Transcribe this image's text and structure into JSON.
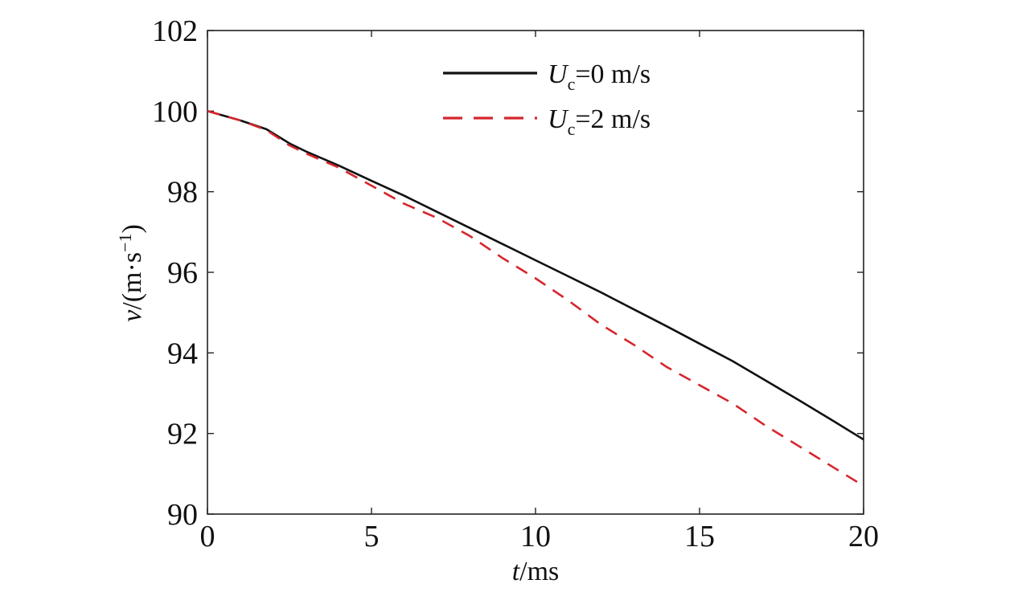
{
  "chart_data": {
    "type": "line",
    "xlabel": {
      "italic": "t",
      "rest": "/ms"
    },
    "ylabel": {
      "italic": "v",
      "rest": "/(m·s",
      "sup": "−1",
      "close": ")"
    },
    "xlim": [
      0,
      20
    ],
    "ylim": [
      90,
      102
    ],
    "xticks": [
      0,
      5,
      10,
      15,
      20
    ],
    "xtick_labels": [
      "0",
      "5",
      "10",
      "15",
      "20"
    ],
    "yticks": [
      90,
      92,
      94,
      96,
      98,
      100,
      102
    ],
    "ytick_labels": [
      "90",
      "92",
      "94",
      "96",
      "98",
      "100",
      "102"
    ],
    "grid": false,
    "legend_position": "top-center",
    "series": [
      {
        "name": "U_c=0 m/s",
        "legend": {
          "var": "U",
          "sub": "c",
          "rest": "=0 m/s"
        },
        "color": "#111111",
        "style": "solid",
        "x": [
          0,
          1,
          1.8,
          2.5,
          3,
          4,
          5,
          6,
          7,
          8,
          9,
          10,
          11,
          12,
          13,
          14,
          15,
          16,
          17,
          18,
          19,
          20
        ],
        "y": [
          100.0,
          99.77,
          99.55,
          99.2,
          99.0,
          98.65,
          98.27,
          97.9,
          97.5,
          97.1,
          96.7,
          96.3,
          95.9,
          95.5,
          95.08,
          94.66,
          94.23,
          93.8,
          93.32,
          92.84,
          92.35,
          91.85
        ]
      },
      {
        "name": "U_c=2 m/s",
        "legend": {
          "var": "U",
          "sub": "c",
          "rest": "=2 m/s"
        },
        "color": "#d6262d",
        "style": "dashed",
        "x": [
          0,
          1,
          1.8,
          2.5,
          3,
          4,
          5,
          6,
          7,
          8,
          9,
          10,
          11,
          12,
          13,
          14,
          15,
          16,
          17,
          18,
          19,
          20
        ],
        "y": [
          100.0,
          99.77,
          99.53,
          99.15,
          98.95,
          98.6,
          98.15,
          97.7,
          97.35,
          96.9,
          96.35,
          95.85,
          95.3,
          94.7,
          94.2,
          93.65,
          93.2,
          92.75,
          92.2,
          91.7,
          91.2,
          90.7
        ]
      }
    ]
  }
}
